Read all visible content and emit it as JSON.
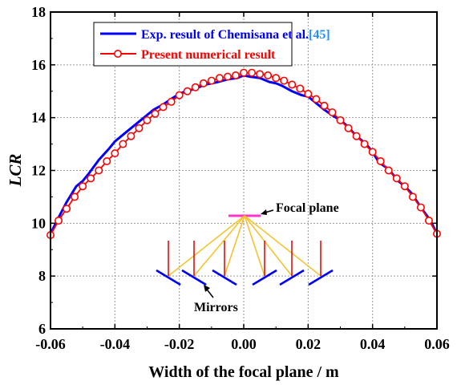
{
  "chart_data": {
    "type": "line",
    "title": "",
    "xlabel": "Width of the focal plane / m",
    "ylabel": "LCR",
    "xlim": [
      -0.06,
      0.06
    ],
    "ylim": [
      6,
      18
    ],
    "xticks": [
      -0.06,
      -0.04,
      -0.02,
      0.0,
      0.02,
      0.04,
      0.06
    ],
    "xtick_labels": [
      "-0.06",
      "-0.04",
      "-0.02",
      "0.00",
      "0.02",
      "0.04",
      "0.06"
    ],
    "yticks": [
      6,
      8,
      10,
      12,
      14,
      16,
      18
    ],
    "ytick_labels": [
      "6",
      "8",
      "10",
      "12",
      "14",
      "16",
      "18"
    ],
    "grid": true,
    "legend_position": "top-left",
    "series": [
      {
        "name": "Exp. result of Chemisana et al.",
        "citation": "[45]",
        "color": "#0000ff",
        "marker": "none",
        "x": [
          -0.06,
          -0.058,
          -0.055,
          -0.052,
          -0.05,
          -0.048,
          -0.045,
          -0.042,
          -0.04,
          -0.038,
          -0.035,
          -0.032,
          -0.03,
          -0.028,
          -0.025,
          -0.022,
          -0.02,
          -0.018,
          -0.015,
          -0.012,
          -0.01,
          -0.008,
          -0.005,
          -0.002,
          0.0,
          0.002,
          0.005,
          0.008,
          0.01,
          0.012,
          0.015,
          0.018,
          0.02,
          0.022,
          0.025,
          0.028,
          0.03,
          0.032,
          0.035,
          0.038,
          0.04,
          0.042,
          0.045,
          0.048,
          0.05,
          0.052,
          0.055,
          0.058,
          0.06
        ],
        "y": [
          9.6,
          10.1,
          10.8,
          11.4,
          11.6,
          11.9,
          12.4,
          12.8,
          13.1,
          13.3,
          13.6,
          13.9,
          14.1,
          14.3,
          14.5,
          14.75,
          14.9,
          15.0,
          15.1,
          15.25,
          15.3,
          15.35,
          15.45,
          15.5,
          15.6,
          15.55,
          15.5,
          15.35,
          15.3,
          15.2,
          15.0,
          14.85,
          14.8,
          14.6,
          14.3,
          14.05,
          13.9,
          13.7,
          13.3,
          13.0,
          12.7,
          12.3,
          12.05,
          11.6,
          11.4,
          11.15,
          10.6,
          10.1,
          9.6
        ]
      },
      {
        "name": "Present numerical result",
        "color": "#ff0000",
        "marker": "circle",
        "x": [
          -0.06,
          -0.0575,
          -0.055,
          -0.0525,
          -0.05,
          -0.0475,
          -0.045,
          -0.0425,
          -0.04,
          -0.0375,
          -0.035,
          -0.0325,
          -0.03,
          -0.0275,
          -0.025,
          -0.0225,
          -0.02,
          -0.0175,
          -0.015,
          -0.0125,
          -0.01,
          -0.0075,
          -0.005,
          -0.0025,
          0.0,
          0.0025,
          0.005,
          0.0075,
          0.01,
          0.0125,
          0.015,
          0.0175,
          0.02,
          0.0225,
          0.025,
          0.0275,
          0.03,
          0.0325,
          0.035,
          0.0375,
          0.04,
          0.0425,
          0.045,
          0.0475,
          0.05,
          0.0525,
          0.055,
          0.0575,
          0.06
        ],
        "y": [
          9.55,
          10.1,
          10.55,
          11.0,
          11.4,
          11.7,
          12.0,
          12.35,
          12.65,
          13.0,
          13.3,
          13.6,
          13.9,
          14.15,
          14.4,
          14.6,
          14.85,
          15.0,
          15.15,
          15.3,
          15.4,
          15.5,
          15.55,
          15.6,
          15.7,
          15.7,
          15.65,
          15.6,
          15.5,
          15.4,
          15.25,
          15.1,
          14.9,
          14.7,
          14.45,
          14.2,
          13.9,
          13.6,
          13.3,
          13.0,
          12.7,
          12.35,
          12.0,
          11.7,
          11.4,
          11.0,
          10.6,
          10.1,
          9.6
        ]
      }
    ],
    "annotations": [
      {
        "text": "Focal plane"
      },
      {
        "text": "Mirrors"
      }
    ]
  }
}
